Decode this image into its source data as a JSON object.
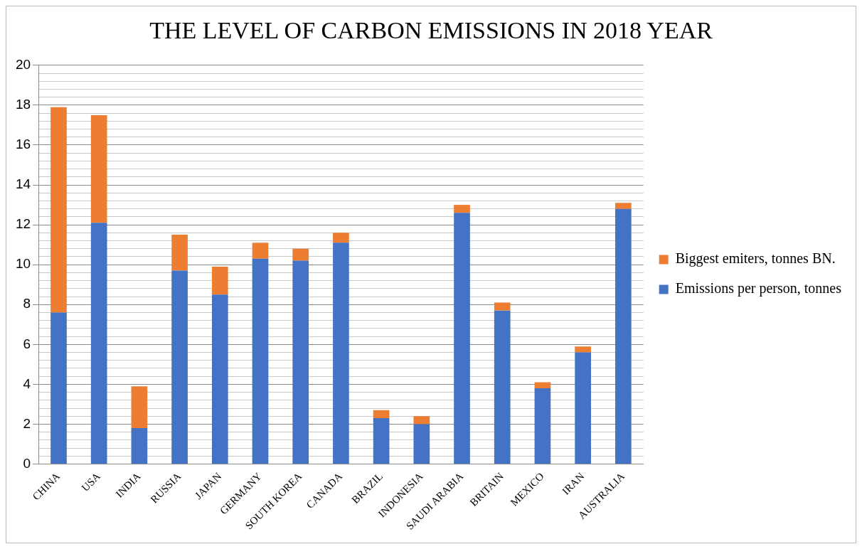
{
  "chart_data": {
    "type": "bar",
    "title": "THE LEVEL OF CARBON EMISSIONS IN 2018 YEAR",
    "stacked": true,
    "categories": [
      "CHINA",
      "USA",
      "INDIA",
      "RUSSIA",
      "JAPAN",
      "GERMANY",
      "SOUTH KOREA",
      "CANADA",
      "BRAZIL",
      "INDONESIA",
      "SAUDI ARABIA",
      "BRITAIN",
      "MEXICO",
      "IRAN",
      "AUSTRALIA"
    ],
    "series": [
      {
        "name": "Emissions per person, tonnes",
        "color": "#4472c4",
        "values": [
          7.6,
          12.1,
          1.8,
          9.7,
          8.5,
          10.3,
          10.2,
          11.1,
          2.3,
          2.0,
          12.6,
          7.7,
          3.8,
          5.6,
          12.8
        ]
      },
      {
        "name": "Biggest emiters, tonnes BN.",
        "color": "#ed7d31",
        "values": [
          10.3,
          5.4,
          2.1,
          1.8,
          1.4,
          0.8,
          0.6,
          0.5,
          0.4,
          0.4,
          0.4,
          0.4,
          0.3,
          0.3,
          0.3
        ]
      }
    ],
    "ylim": [
      0,
      20
    ],
    "yticks": [
      0,
      {
        "value": 0.4,
        "label": null
      },
      {
        "value": 0.8,
        "label": null
      },
      {
        "value": 1.2,
        "label": null
      },
      {
        "value": 1.6,
        "label": null
      },
      2,
      {
        "value": 2.4,
        "label": null
      },
      {
        "value": 2.8,
        "label": null
      },
      {
        "value": 3.2,
        "label": null
      },
      {
        "value": 3.6,
        "label": null
      },
      4,
      {
        "value": 4.4,
        "label": null
      },
      {
        "value": 4.8,
        "label": null
      },
      {
        "value": 5.2,
        "label": null
      },
      {
        "value": 5.6,
        "label": null
      },
      6,
      {
        "value": 6.4,
        "label": null
      },
      {
        "value": 6.8,
        "label": null
      },
      {
        "value": 7.2,
        "label": null
      },
      {
        "value": 7.6,
        "label": null
      },
      8,
      {
        "value": 8.4,
        "label": null
      },
      {
        "value": 8.8,
        "label": null
      },
      {
        "value": 9.2,
        "label": null
      },
      {
        "value": 9.6,
        "label": null
      },
      10,
      {
        "value": 10.4,
        "label": null
      },
      {
        "value": 10.8,
        "label": null
      },
      {
        "value": 11.2,
        "label": null
      },
      {
        "value": 11.6,
        "label": null
      },
      12,
      {
        "value": 12.4,
        "label": null
      },
      {
        "value": 12.8,
        "label": null
      },
      {
        "value": 13.2,
        "label": null
      },
      {
        "value": 13.6,
        "label": null
      },
      14,
      {
        "value": 14.4,
        "label": null
      },
      {
        "value": 14.8,
        "label": null
      },
      {
        "value": 15.2,
        "label": null
      },
      {
        "value": 15.6,
        "label": null
      },
      16,
      {
        "value": 16.4,
        "label": null
      },
      {
        "value": 16.8,
        "label": null
      },
      {
        "value": 17.2,
        "label": null
      },
      {
        "value": 17.6,
        "label": null
      },
      18,
      {
        "value": 18.4,
        "label": null
      },
      {
        "value": 18.8,
        "label": null
      },
      {
        "value": 19.2,
        "label": null
      },
      {
        "value": 19.6,
        "label": null
      },
      20
    ],
    "grid": "y",
    "legend": "right"
  }
}
